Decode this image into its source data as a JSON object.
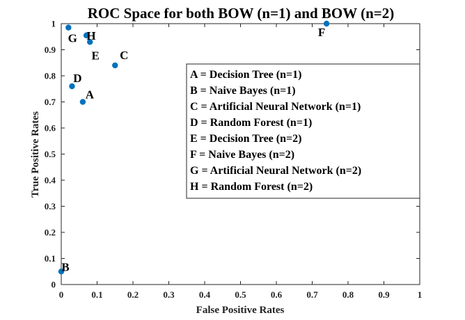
{
  "chart_data": {
    "type": "scatter",
    "title": "ROC Space for both BOW (n=1) and BOW (n=2)",
    "xlabel": "False Positive Rates",
    "ylabel": "True Positive Rates",
    "xlim": [
      0,
      1
    ],
    "ylim": [
      0,
      1
    ],
    "x_ticks": [
      "0",
      "0.1",
      "0.2",
      "0.3",
      "0.4",
      "0.5",
      "0.6",
      "0.7",
      "0.8",
      "0.9",
      "1"
    ],
    "y_ticks": [
      "0",
      "0.1",
      "0.2",
      "0.3",
      "0.4",
      "0.5",
      "0.6",
      "0.7",
      "0.8",
      "0.9",
      "1"
    ],
    "grid": false,
    "legend_position": "center-right",
    "point_color": "#0072bd",
    "points": [
      {
        "label": "A",
        "x": 0.06,
        "y": 0.7
      },
      {
        "label": "B",
        "x": 0.0,
        "y": 0.05
      },
      {
        "label": "C",
        "x": 0.15,
        "y": 0.84
      },
      {
        "label": "D",
        "x": 0.03,
        "y": 0.76
      },
      {
        "label": "E",
        "x": 0.08,
        "y": 0.93
      },
      {
        "label": "F",
        "x": 0.74,
        "y": 1.0
      },
      {
        "label": "G",
        "x": 0.02,
        "y": 0.985
      },
      {
        "label": "H",
        "x": 0.07,
        "y": 0.955
      }
    ],
    "legend": [
      "A = Decision Tree (n=1)",
      "B = Naive Bayes (n=1)",
      "C = Artificial Neural Network (n=1)",
      "D = Random Forest (n=1)",
      "E = Decision Tree (n=2)",
      "F = Naive Bayes (n=2)",
      "G = Artificial Neural Network (n=2)",
      "H = Random Forest (n=2)"
    ]
  }
}
